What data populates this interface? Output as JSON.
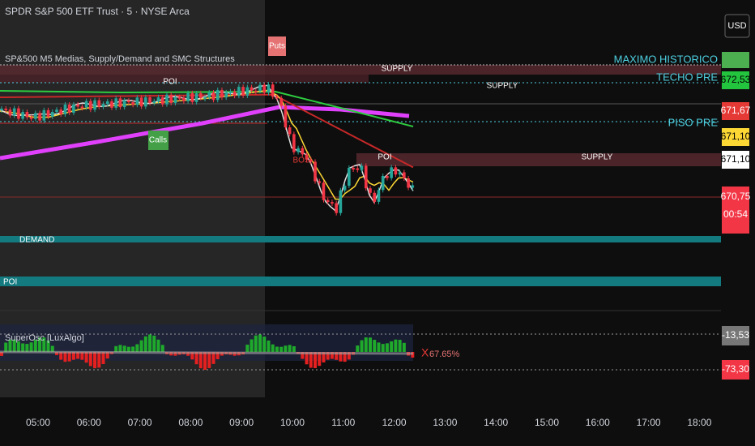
{
  "header": {
    "symbol": "SPDR S&P 500 ETF Trust · 5 · NYSE Arca",
    "currency": "USD",
    "indicator": "SP&500 M5 Medias, Supply/Demand and SMC Structures"
  },
  "annotations": {
    "puts": "Puts",
    "calls": "Calls",
    "supply_1": "SUPPLY",
    "supply_2": "SUPPLY",
    "supply_3": "SUPPLY",
    "poi_1": "POI",
    "poi_2": "POI",
    "poi_3": "POI",
    "demand": "DEMAND",
    "bos": "BOS"
  },
  "levels": {
    "maximo": "MAXIMO HISTORICO",
    "techo": "TECHO PRE",
    "piso": "PISO PRE"
  },
  "price_tags": {
    "techo": "672,53",
    "red": "671,67",
    "yellow": "671,10",
    "white": "671,10",
    "last": "670,75",
    "countdown": "00:54"
  },
  "oscillator": {
    "name": "SuperOsc [LuxAlgo]",
    "cross": "X",
    "percent": "67.65%",
    "upper": "-13,53",
    "lower": "-73,30"
  },
  "time_axis": [
    "05:00",
    "06:00",
    "07:00",
    "08:00",
    "09:00",
    "10:00",
    "11:00",
    "12:00",
    "13:00",
    "14:00",
    "15:00",
    "16:00",
    "17:00",
    "18:00"
  ]
}
